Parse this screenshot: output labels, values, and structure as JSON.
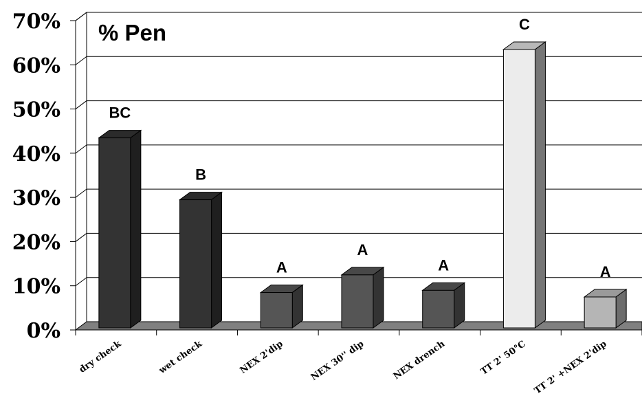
{
  "chart_data": {
    "type": "bar",
    "title": "% Pen",
    "categories": [
      "dry check",
      "wet check",
      "NEX 2'dip",
      "NEX 30'' dip",
      "NEX drench",
      "TT 2' 50°C",
      "TT 2' +NEX 2'dip"
    ],
    "values": [
      43,
      29,
      8,
      12,
      8.5,
      63,
      7
    ],
    "value_unit": "%",
    "significance_letters": [
      "BC",
      "B",
      "A",
      "A",
      "A",
      "C",
      "A"
    ],
    "ylim": [
      0,
      70
    ],
    "yticks": [
      "0%",
      "10%",
      "20%",
      "30%",
      "40%",
      "50%",
      "60%",
      "70%"
    ],
    "xlabel": "",
    "ylabel": "",
    "grid": true,
    "style": "3d-bar",
    "colors": {
      "bars": [
        "#333333",
        "#333333",
        "#555555",
        "#555555",
        "#555555",
        "#ececec",
        "#b5b5b5"
      ],
      "floor": "#808080",
      "grid": "#000000"
    }
  }
}
